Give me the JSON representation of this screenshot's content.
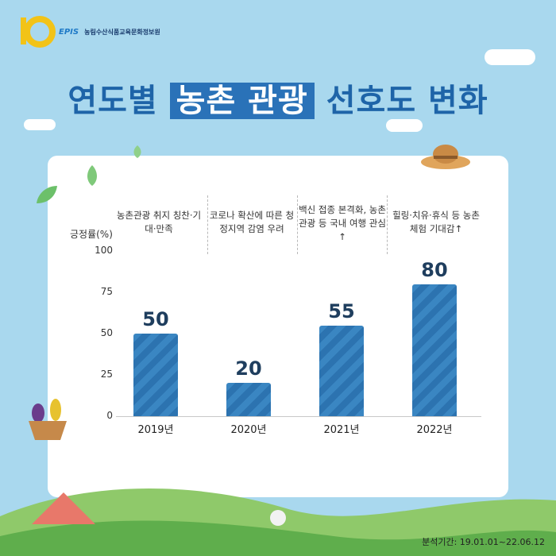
{
  "logo": {
    "mark_text": "10",
    "brand": "EPIS",
    "org": "농림수산식품교육문화정보원"
  },
  "title": {
    "pre": "연도별 ",
    "highlight": "농촌 관광",
    "post": " 선호도 변화"
  },
  "colors": {
    "background": "#a9d8ee",
    "bar": "#2f77b5",
    "title": "#1e64a8",
    "value_text": "#1f3e5e"
  },
  "notes": [
    "농촌관광 취지 칭찬·기대·만족",
    "코로나 확산에 따른 청정지역 감염 우려",
    "백신 접종 본격화, 농촌 관광 등 국내 여행 관심↑",
    "힐링·치유·휴식 등 농촌 체험 기대감↑"
  ],
  "footer": "분석기간: 19.01.01~22.06.12",
  "chart_data": {
    "type": "bar",
    "categories": [
      "2019년",
      "2020년",
      "2021년",
      "2022년"
    ],
    "values": [
      50,
      20,
      55,
      80
    ],
    "ylabel": "긍정률(%)",
    "ylim": [
      0,
      100
    ],
    "yticks": [
      0,
      25,
      50,
      75,
      100
    ],
    "grid": false,
    "legend": "none"
  }
}
